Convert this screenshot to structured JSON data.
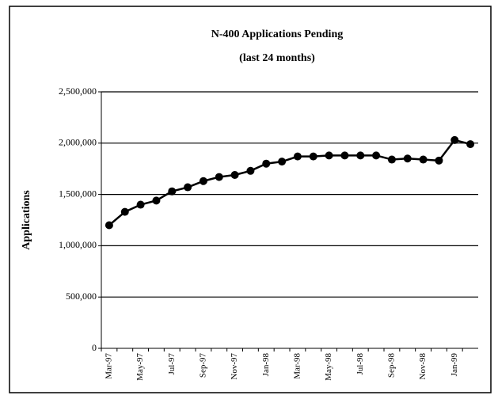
{
  "chart_data": {
    "type": "line",
    "title": "N-400 Applications Pending",
    "subtitle": "(last 24 months)",
    "y_label": "Applications",
    "categories": [
      "Mar-97",
      null,
      "May-97",
      null,
      "Jul-97",
      null,
      "Sep-97",
      null,
      "Nov-97",
      null,
      "Jan-98",
      null,
      "Mar-98",
      null,
      "May-98",
      null,
      "Jul-98",
      null,
      "Sep-98",
      null,
      "Nov-98",
      null,
      "Jan-99",
      null
    ],
    "series": [
      {
        "name": "N-400 Applications Pending",
        "color": "#000000",
        "values": [
          1200000,
          1330000,
          1400000,
          1440000,
          1530000,
          1570000,
          1630000,
          1670000,
          1690000,
          1730000,
          1800000,
          1820000,
          1870000,
          1870000,
          1880000,
          1880000,
          1880000,
          1880000,
          1840000,
          1850000,
          1840000,
          1830000,
          2030000,
          1990000
        ]
      }
    ],
    "ylim": [
      0,
      2500000
    ],
    "yticks": [
      0,
      {
        "value": 500000,
        "label": "500,000"
      },
      {
        "value": 1000000,
        "label": "1,000,000"
      },
      {
        "value": 1500000,
        "label": "1,500,000"
      },
      {
        "value": 2000000,
        "label": "2,000,000"
      },
      {
        "value": 2500000,
        "label": "2,500,000"
      }
    ],
    "grid": true
  }
}
